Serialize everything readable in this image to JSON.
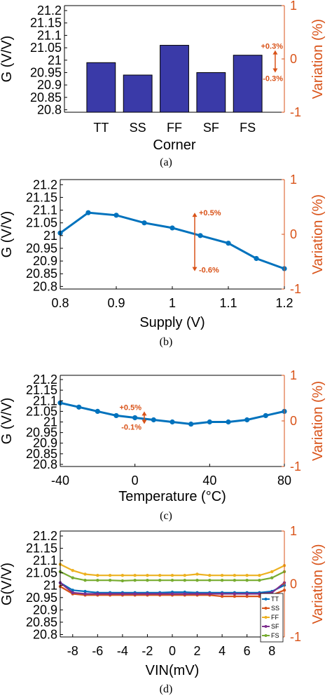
{
  "colors": {
    "bar": "#3A3AA8",
    "line": "#0072BD",
    "right_axis": "#D95319",
    "series": [
      "#0072BD",
      "#D95319",
      "#EDB120",
      "#7E2F8E",
      "#77AC30"
    ]
  },
  "chart_data": [
    {
      "type": "bar",
      "caption": "(a)",
      "xlabel": "Corner",
      "ylabel": "G (V/V)",
      "ylabel_right": "Variation (%)",
      "categories": [
        "TT",
        "SS",
        "FF",
        "SF",
        "FS"
      ],
      "values": [
        20.99,
        20.94,
        21.06,
        20.95,
        21.02
      ],
      "ylim": [
        20.79,
        21.22
      ],
      "yticks": [
        20.8,
        20.85,
        20.9,
        20.95,
        21,
        21.05,
        21.1,
        21.15,
        21.2
      ],
      "ytick_labels": [
        "20.8",
        "20.85",
        "20.9",
        "20.95",
        "21",
        "21.05",
        "21.1",
        "21.15",
        "21.2"
      ],
      "ylim_right": [
        -1,
        1
      ],
      "yticks_right": [
        -1,
        0,
        1
      ],
      "annotations": {
        "up": "+0.3%",
        "down": "-0.3%",
        "x": 4.75,
        "y_top": 21.04,
        "y_bottom": 20.95
      }
    },
    {
      "type": "line",
      "caption": "(b)",
      "xlabel": "Supply (V)",
      "ylabel": "G (V/V)",
      "ylabel_right": "Variation (%)",
      "x": [
        0.8,
        0.85,
        0.9,
        0.95,
        1.0,
        1.05,
        1.1,
        1.15,
        1.2
      ],
      "values": [
        21.01,
        21.09,
        21.08,
        21.05,
        21.03,
        21.0,
        20.97,
        20.91,
        20.87
      ],
      "xlim": [
        0.8,
        1.2
      ],
      "xticks": [
        0.8,
        0.9,
        1,
        1.1,
        1.2
      ],
      "xtick_labels": [
        "0.8",
        "0.9",
        "1",
        "1.1",
        "1.2"
      ],
      "ylim": [
        20.79,
        21.22
      ],
      "yticks": [
        20.8,
        20.85,
        20.9,
        20.95,
        21,
        21.05,
        21.1,
        21.15,
        21.2
      ],
      "ytick_labels": [
        "20.8",
        "20.85",
        "20.9",
        "20.95",
        "21",
        "21.05",
        "21.1",
        "21.15",
        "21.2"
      ],
      "ylim_right": [
        -1,
        1
      ],
      "yticks_right": [
        -1,
        0,
        1
      ],
      "annotations": {
        "up": "+0.5%",
        "down": "-0.6%",
        "x": 1.04,
        "y_top": 21.09,
        "y_bottom": 20.86
      }
    },
    {
      "type": "line",
      "caption": "(c)",
      "xlabel": "Temperature (°C)",
      "ylabel": "G (V/V)",
      "ylabel_right": "Variation (%)",
      "x": [
        -40,
        -30,
        -20,
        -10,
        0,
        10,
        20,
        30,
        40,
        50,
        60,
        70,
        80
      ],
      "values": [
        21.09,
        21.07,
        21.05,
        21.03,
        21.02,
        21.01,
        21.0,
        20.99,
        21.0,
        21.0,
        21.01,
        21.03,
        21.05
      ],
      "xlim": [
        -40,
        80
      ],
      "xticks": [
        -40,
        0,
        40,
        80
      ],
      "xtick_labels": [
        "-40",
        "0",
        "40",
        "80"
      ],
      "ylim": [
        20.79,
        21.22
      ],
      "yticks": [
        20.8,
        20.85,
        20.9,
        20.95,
        21,
        21.05,
        21.1,
        21.15,
        21.2
      ],
      "ytick_labels": [
        "20.8",
        "20.85",
        "20.9",
        "20.95",
        "21",
        "21.05",
        "21.1",
        "21.15",
        "21.2"
      ],
      "ylim_right": [
        -1,
        1
      ],
      "yticks_right": [
        -1,
        0,
        1
      ],
      "annotations": {
        "up": "+0.5%",
        "down": "-0.1%",
        "x": 5,
        "y_top": 21.05,
        "y_bottom": 20.99
      }
    },
    {
      "type": "line",
      "caption": "(d)",
      "xlabel": "VIN(mV)",
      "ylabel": "G(V/V)",
      "ylabel_right": "Variation (%)",
      "x": [
        -9,
        -8,
        -7,
        -6,
        -5,
        -4,
        -3,
        -2,
        -1,
        0,
        1,
        2,
        3,
        4,
        5,
        6,
        7,
        8,
        9
      ],
      "xlim": [
        -9,
        9
      ],
      "xticks": [
        -8,
        -6,
        -4,
        -2,
        0,
        2,
        4,
        6,
        8
      ],
      "xtick_labels": [
        "-8",
        "-6",
        "-4",
        "-2",
        "0",
        "2",
        "4",
        "6",
        "8"
      ],
      "ylim": [
        20.79,
        21.22
      ],
      "yticks": [
        20.8,
        20.85,
        20.9,
        20.95,
        21,
        21.05,
        21.1,
        21.15,
        21.2
      ],
      "ytick_labels": [
        "20.8",
        "20.85",
        "20.9",
        "20.95",
        "21",
        "21.05",
        "21.1",
        "21.15",
        "21.2"
      ],
      "ylim_right": [
        -1,
        1
      ],
      "yticks_right": [
        -1,
        0,
        1
      ],
      "legend": "right",
      "series": [
        {
          "name": "TT",
          "values": [
            21.01,
            20.98,
            20.975,
            20.97,
            20.97,
            20.97,
            20.97,
            20.97,
            20.97,
            20.972,
            20.972,
            20.97,
            20.97,
            20.97,
            20.97,
            20.97,
            20.97,
            20.975,
            21.0
          ]
        },
        {
          "name": "SS",
          "values": [
            20.995,
            20.965,
            20.96,
            20.96,
            20.96,
            20.96,
            20.96,
            20.96,
            20.96,
            20.96,
            20.96,
            20.96,
            20.96,
            20.955,
            20.955,
            20.955,
            20.955,
            20.96,
            20.98
          ]
        },
        {
          "name": "FF",
          "values": [
            21.085,
            21.06,
            21.045,
            21.04,
            21.04,
            21.04,
            21.04,
            21.04,
            21.04,
            21.04,
            21.04,
            21.045,
            21.04,
            21.04,
            21.04,
            21.04,
            21.04,
            21.055,
            21.08
          ]
        },
        {
          "name": "SF",
          "values": [
            21.01,
            20.97,
            20.965,
            20.965,
            20.965,
            20.965,
            20.965,
            20.965,
            20.965,
            20.965,
            20.965,
            20.965,
            20.965,
            20.965,
            20.965,
            20.965,
            20.965,
            20.97,
            21.01
          ]
        },
        {
          "name": "FS",
          "values": [
            21.055,
            21.03,
            21.02,
            21.02,
            21.02,
            21.018,
            21.02,
            21.02,
            21.02,
            21.02,
            21.02,
            21.02,
            21.02,
            21.02,
            21.02,
            21.02,
            21.02,
            21.03,
            21.055
          ]
        }
      ]
    }
  ]
}
